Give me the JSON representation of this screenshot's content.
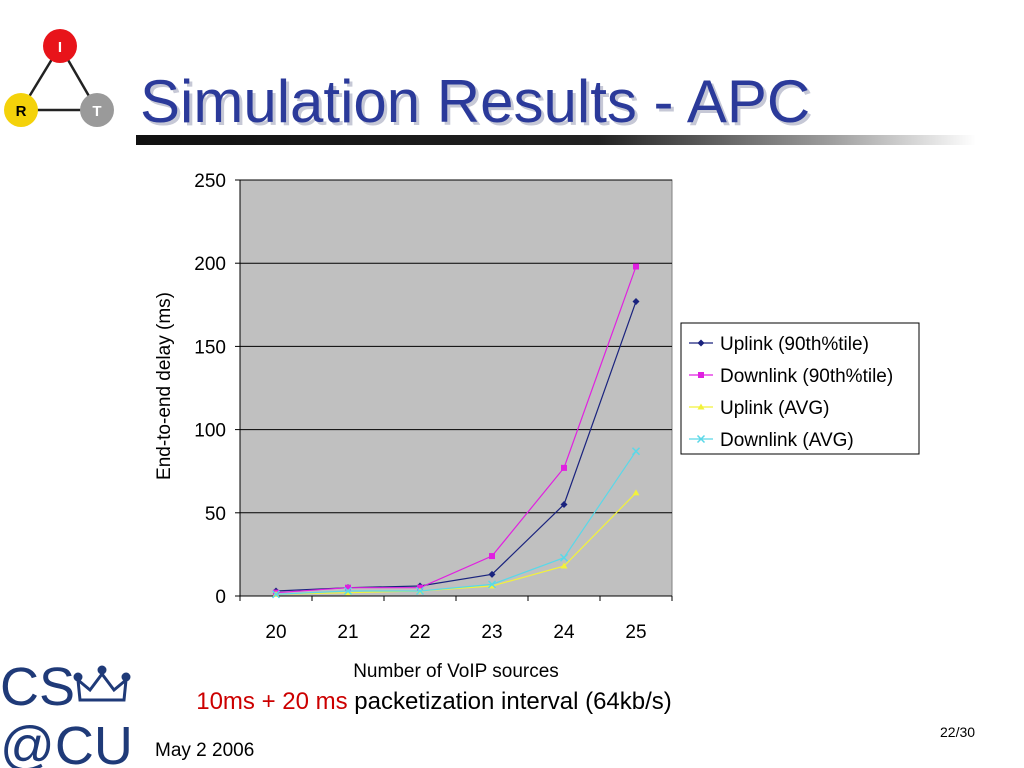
{
  "slide": {
    "title": "Simulation Results - APC",
    "caption_accent": "10ms + 20 ms",
    "caption_rest": " packetization interval (64kb/s)",
    "date": "May 2 2006",
    "page": "22/30"
  },
  "logos": {
    "irt": {
      "top": "I",
      "left": "R",
      "right": "T"
    },
    "cscu": {
      "line1": "CS",
      "line2": "@CU"
    }
  },
  "colors": {
    "title": "#2b3a9a",
    "plot_bg": "#c0c0c0",
    "accent_red": "#cc0000"
  },
  "chart_data": {
    "type": "line",
    "xlabel": "Number of VoIP sources",
    "ylabel": "End-to-end delay (ms)",
    "categories": [
      "20",
      "21",
      "22",
      "23",
      "24",
      "25"
    ],
    "ylim": [
      0,
      250
    ],
    "yticks": [
      0,
      50,
      100,
      150,
      200,
      250
    ],
    "grid": true,
    "legend": "right",
    "series": [
      {
        "name": "Uplink (90th%tile)",
        "values": [
          3,
          5,
          6,
          13,
          55,
          177
        ],
        "color": "#1a237e",
        "marker": "diamond"
      },
      {
        "name": "Downlink (90th%tile)",
        "values": [
          2,
          5,
          5,
          24,
          77,
          198
        ],
        "color": "#e020e0",
        "marker": "square"
      },
      {
        "name": "Uplink (AVG)",
        "values": [
          1,
          2,
          3,
          6,
          18,
          62
        ],
        "color": "#f2f23a",
        "marker": "triangle"
      },
      {
        "name": "Downlink (AVG)",
        "values": [
          1,
          3,
          3,
          7,
          23,
          87
        ],
        "color": "#5ad8e8",
        "marker": "x"
      }
    ]
  }
}
